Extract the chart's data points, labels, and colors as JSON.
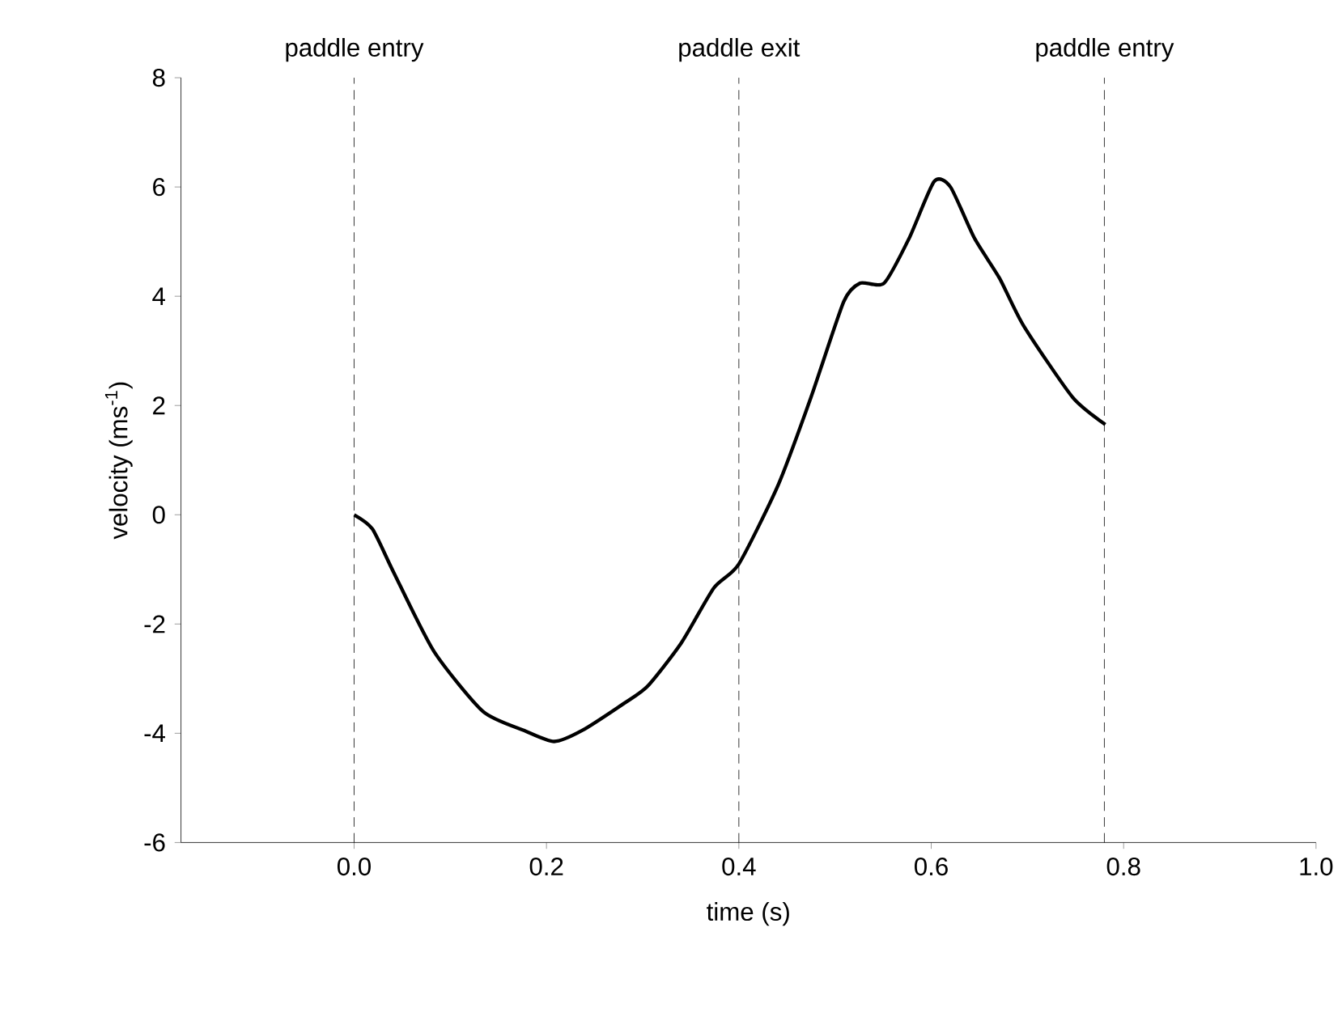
{
  "chart_data": {
    "type": "line",
    "xlabel": "time (s)",
    "ylabel": "velocity (ms$^{-1}$)",
    "x": [
      0,
      0.019,
      0.041,
      0.083,
      0.134,
      0.177,
      0.208,
      0.237,
      0.28,
      0.305,
      0.34,
      0.374,
      0.4,
      0.441,
      0.475,
      0.509,
      0.526,
      0.551,
      0.577,
      0.603,
      0.62,
      0.645,
      0.671,
      0.696,
      0.747,
      0.781
    ],
    "series": [
      {
        "color": "#000000",
        "values": [
          0,
          -0.26,
          -1.05,
          -2.5,
          -3.6,
          -3.95,
          -4.15,
          -3.95,
          -3.46,
          -3.14,
          -2.35,
          -1.34,
          -0.9,
          0.55,
          2.15,
          3.9,
          4.24,
          4.24,
          5.06,
          6.1,
          6.0,
          5.06,
          4.33,
          3.46,
          2.15,
          1.65
        ]
      }
    ],
    "xlim": [
      -0.18,
      1.0
    ],
    "ylim": [
      -6,
      8
    ],
    "xticks": [
      {
        "value": 0,
        "label": "0.0"
      },
      {
        "value": 0.2,
        "label": "0.2"
      },
      {
        "value": 0.4,
        "label": "0.4"
      },
      {
        "value": 0.6,
        "label": "0.6"
      },
      {
        "value": 0.8,
        "label": "0.8"
      },
      {
        "value": 1.0,
        "label": "1.0"
      }
    ],
    "yticks": [
      -6,
      -4,
      -2,
      0,
      2,
      4,
      6,
      8
    ],
    "ref_lines": [
      {
        "axis": "x",
        "value": 0,
        "label": "paddle entry",
        "line_style": "dashed"
      },
      {
        "axis": "x",
        "value": 0.4,
        "label": "paddle exit",
        "line_style": "dashed"
      },
      {
        "axis": "x",
        "value": 0.78,
        "label": "paddle entry",
        "line_style": "dashed"
      }
    ],
    "grid": false,
    "marker": "none",
    "line_style": "solid"
  }
}
